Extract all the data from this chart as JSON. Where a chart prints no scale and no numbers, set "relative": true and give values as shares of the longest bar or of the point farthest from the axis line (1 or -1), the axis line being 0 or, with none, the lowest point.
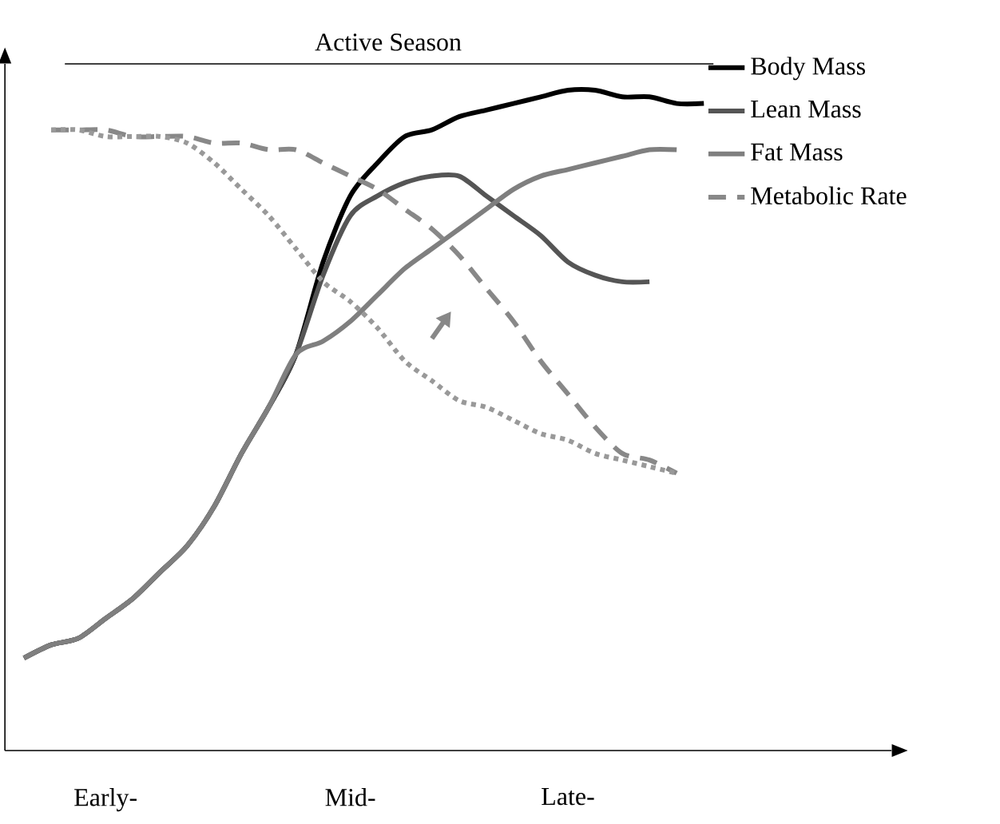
{
  "chart_data": {
    "type": "line",
    "relative": true,
    "legend": "top right",
    "categories": [
      null,
      null,
      null,
      "Early-",
      null,
      null,
      null,
      null,
      null,
      null,
      null,
      null,
      "Mid-",
      null,
      null,
      null,
      null,
      null,
      null,
      null,
      "Late-",
      null,
      null,
      null,
      null,
      null
    ],
    "annotations": [
      "Active Season"
    ],
    "series": [
      {
        "name": "Body Mass",
        "color": "#000000",
        "line_style": "solid",
        "values": [
          0.14,
          0.16,
          0.17,
          0.2,
          0.23,
          0.27,
          0.31,
          0.37,
          0.45,
          0.52,
          0.6,
          0.74,
          0.84,
          0.89,
          0.93,
          0.94,
          0.96,
          0.97,
          0.98,
          0.99,
          1.0,
          1.0,
          0.99,
          0.99,
          0.98,
          0.98
        ]
      },
      {
        "name": "Lean Mass",
        "color": "#555555",
        "line_style": "solid",
        "values": [
          0.14,
          0.16,
          0.17,
          0.2,
          0.23,
          0.27,
          0.31,
          0.37,
          0.45,
          0.52,
          0.6,
          0.72,
          0.81,
          0.84,
          0.86,
          0.87,
          0.87,
          0.84,
          0.81,
          0.78,
          0.74,
          0.72,
          0.71,
          0.71,
          null,
          null
        ]
      },
      {
        "name": "Fat Mass",
        "color": "#7f7f7f",
        "line_style": "solid",
        "values": [
          0.14,
          0.16,
          0.17,
          0.2,
          0.23,
          0.27,
          0.31,
          0.37,
          0.45,
          0.52,
          0.6,
          0.62,
          0.65,
          0.69,
          0.73,
          0.76,
          0.79,
          0.82,
          0.85,
          0.87,
          0.88,
          0.89,
          0.9,
          0.91,
          0.91,
          null
        ]
      },
      {
        "name": "Metabolic Rate",
        "color": "#888888",
        "line_style": "dashed",
        "values": [
          null,
          0.94,
          0.94,
          0.94,
          0.93,
          0.93,
          0.93,
          0.92,
          0.92,
          0.91,
          0.91,
          0.89,
          0.87,
          0.85,
          0.82,
          0.79,
          0.75,
          0.7,
          0.65,
          0.59,
          0.54,
          0.49,
          0.45,
          0.44,
          0.42,
          null
        ]
      },
      {
        "color": "#999999",
        "line_style": "dotted",
        "values": [
          null,
          0.94,
          0.94,
          0.93,
          0.93,
          0.93,
          0.92,
          0.89,
          0.85,
          0.81,
          0.76,
          0.71,
          0.68,
          0.64,
          0.59,
          0.56,
          0.53,
          0.52,
          0.5,
          0.48,
          0.47,
          0.45,
          0.44,
          0.43,
          0.42,
          null
        ]
      }
    ]
  }
}
